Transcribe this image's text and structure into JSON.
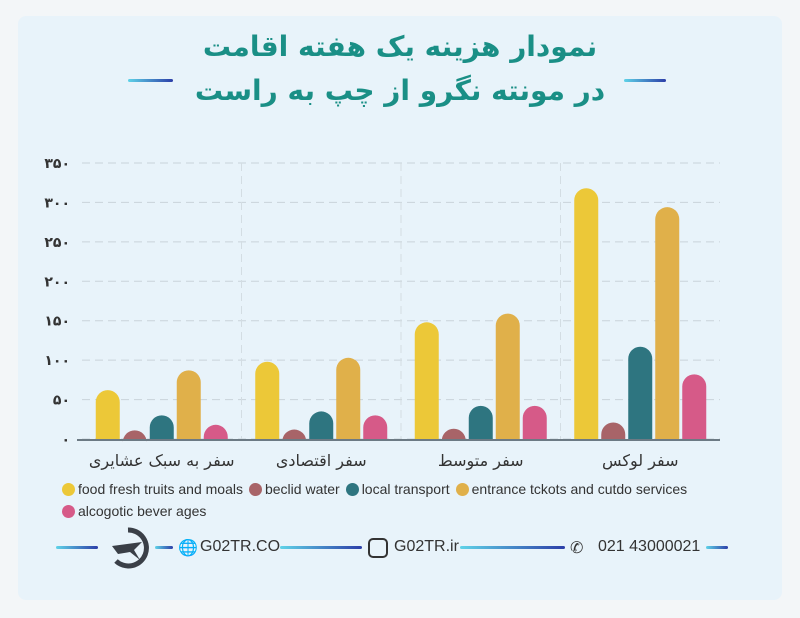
{
  "title": {
    "line1": "نمودار هزینه یک هفته اقامت",
    "line2": "در مونته نگرو از چپ به راست"
  },
  "colors": {
    "food": "#ecc838",
    "water": "#a86468",
    "transport": "#2e7580",
    "entrance": "#e0b04a",
    "alcohol": "#d65a88",
    "accent": "#1a8f86"
  },
  "chart_data": {
    "type": "bar",
    "title": "نمودار هزینه یک هفته اقامت در مونته نگرو از چپ به راست",
    "categories": [
      "سفر به سبک عشایری",
      "سفر اقتصادی",
      "سفر متوسط",
      "سفر لوکس"
    ],
    "series": [
      {
        "name": "food fresh truits and moals",
        "color": "#ecc838",
        "values": [
          62,
          98,
          148,
          318
        ]
      },
      {
        "name": "beclid water",
        "color": "#a86468",
        "values": [
          11,
          12,
          13,
          21
        ]
      },
      {
        "name": "local transport",
        "color": "#2e7580",
        "values": [
          30,
          35,
          42,
          117
        ]
      },
      {
        "name": "entrance tckots and cutdo services",
        "color": "#e0b04a",
        "values": [
          87,
          103,
          159,
          294
        ]
      },
      {
        "name": "alcogotic bever ages",
        "color": "#d65a88",
        "values": [
          18,
          30,
          42,
          82
        ]
      }
    ],
    "yticks": [
      0,
      50,
      100,
      150,
      200,
      250,
      300,
      350
    ],
    "ytick_labels": [
      "۰",
      "۵۰",
      "۱۰۰",
      "۱۵۰",
      "۲۰۰",
      "۲۵۰",
      "۳۰۰",
      "۳۵۰"
    ],
    "ylim": [
      0,
      350
    ],
    "grid": true,
    "legend": "bottom",
    "xlabel": "",
    "ylabel": ""
  },
  "footer": {
    "website": "G02TR.CO",
    "instagram": "G02TR.ir",
    "phone": "021 43000021"
  }
}
